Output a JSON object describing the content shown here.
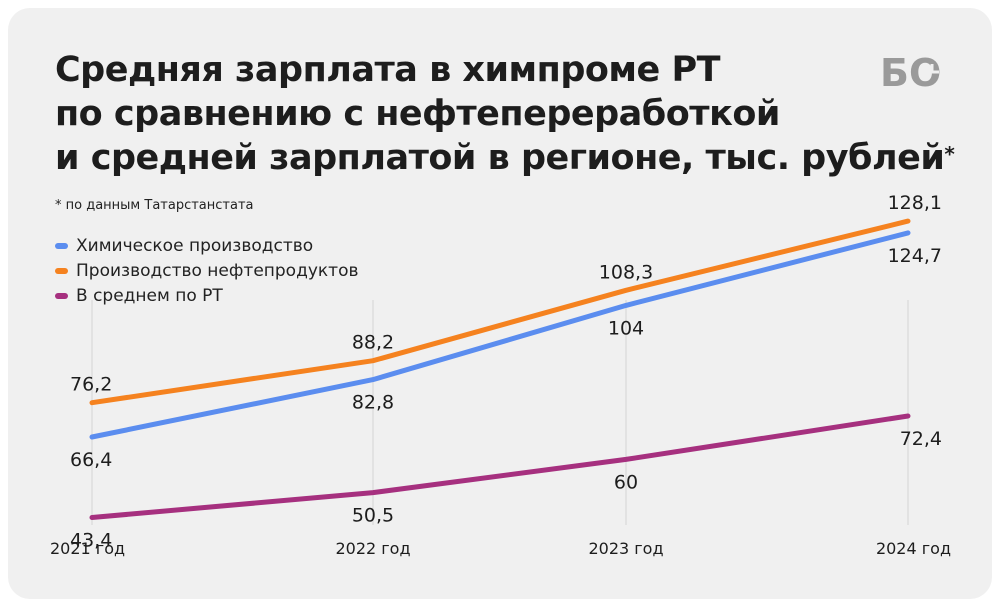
{
  "title_lines": [
    "Средняя зарплата в химпроме РТ",
    "по сравнению с нефтепереработкой",
    "и средней зарплатой в регионе, тыс. рублей"
  ],
  "title_mark": "*",
  "footnote": "* по данным Татарстанстата",
  "logo_text": "БО",
  "colors": {
    "background": "#f0f0f0",
    "gridline": "#d4d4d4"
  },
  "chart_data": {
    "type": "line",
    "x": [
      "2021 год",
      "2022 год",
      "2023 год",
      "2024 год"
    ],
    "ylim": [
      0,
      140
    ],
    "grid": "vertical",
    "legend_placement": "top-left",
    "series": [
      {
        "name": "Химическое производство",
        "color": "#5b8def",
        "values": [
          66.4,
          82.8,
          104,
          124.7
        ],
        "labels": [
          "66,4",
          "82,8",
          "104",
          "124,7"
        ],
        "label_position": "below"
      },
      {
        "name": "Производство нефтепродуктов",
        "color": "#f5821f",
        "values": [
          76.2,
          88.2,
          108.3,
          128.1
        ],
        "labels": [
          "76,2",
          "88,2",
          "108,3",
          "128,1"
        ],
        "label_position": "above"
      },
      {
        "name": "В среднем по РТ",
        "color": "#a6307f",
        "values": [
          43.4,
          50.5,
          60,
          72.4
        ],
        "labels": [
          "43,4",
          "50,5",
          "60",
          "72,4"
        ],
        "label_position": "below"
      }
    ]
  }
}
